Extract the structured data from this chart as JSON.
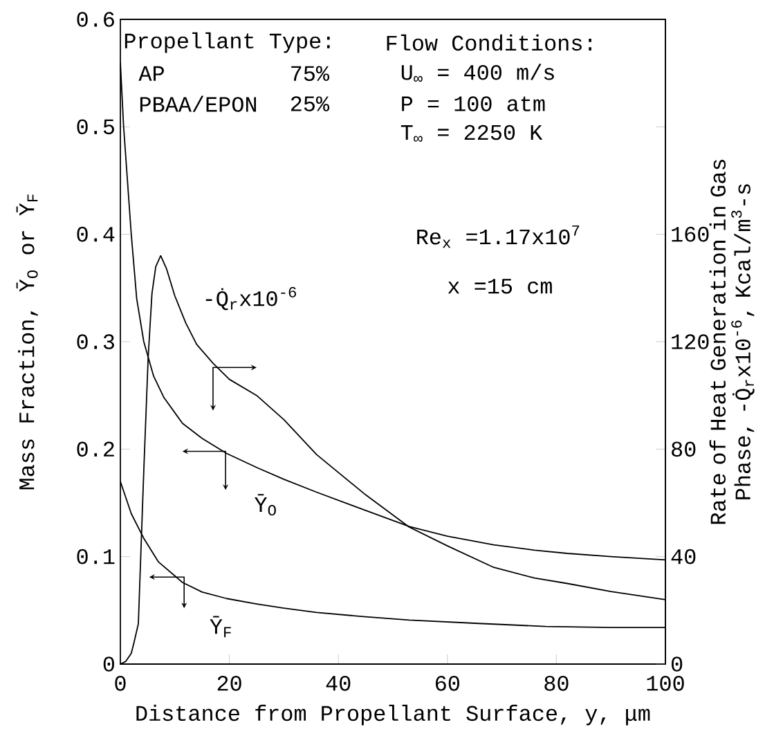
{
  "chart_data": {
    "type": "line",
    "xlabel": "Distance from Propellant Surface, y, μm",
    "ylabel": "Mass Fraction, Ȳ$_{O}$ or Ȳ$_{F}$",
    "y2label": "Rate of Heat Generation in Gas Phase, -Q̇$_{r}$x10$^{-6}$, Kcal/m$^{3}$-s",
    "xlim": [
      0,
      100
    ],
    "xticks": [
      0,
      20,
      40,
      60,
      80,
      100
    ],
    "ylim": [
      0,
      0.6
    ],
    "yticks": [
      0,
      0.1,
      0.2,
      0.3,
      0.4,
      0.5,
      0.6
    ],
    "y2lim": [
      0,
      240
    ],
    "y2ticks": [
      0,
      40,
      80,
      120,
      160,
      {
        "value": 200,
        "label": null
      }
    ],
    "series": [
      {
        "color": "#000000",
        "x": [
          0,
          0.6,
          2,
          3,
          4.3,
          6.1,
          8,
          11.4,
          15,
          19.5,
          25,
          30,
          36,
          45,
          53,
          60,
          68.5,
          76,
          82,
          90,
          100
        ],
        "values": [
          0.56,
          0.5,
          0.4,
          0.34,
          0.3,
          0.268,
          0.248,
          0.224,
          0.21,
          0.196,
          0.183,
          0.172,
          0.16,
          0.143,
          0.128,
          0.119,
          0.111,
          0.106,
          0.103,
          0.1,
          0.097
        ]
      },
      {
        "color": "#000000",
        "x": [
          0,
          2,
          4.3,
          7,
          11.4,
          15,
          19.5,
          25,
          30,
          36,
          45,
          53,
          65,
          78,
          90,
          100
        ],
        "values": [
          0.17,
          0.14,
          0.117,
          0.095,
          0.076,
          0.067,
          0.061,
          0.056,
          0.052,
          0.048,
          0.044,
          0.041,
          0.038,
          0.035,
          0.034,
          0.034
        ]
      },
      {
        "color": "#000000",
        "axis": "y2",
        "x": [
          0,
          1,
          2,
          2.5,
          3.3,
          4.3,
          5.1,
          5.8,
          6.5,
          7.4,
          8.5,
          10,
          12,
          14,
          17,
          20,
          25,
          30,
          36,
          45,
          53,
          60,
          68.5,
          76,
          82,
          90,
          100
        ],
        "values": [
          0,
          1,
          4,
          8,
          15,
          72,
          114,
          138,
          148,
          152,
          147,
          137,
          127,
          119,
          112,
          106,
          100,
          91,
          78,
          63,
          51,
          44,
          36,
          32,
          30,
          27,
          24
        ]
      }
    ],
    "annotations": [
      "Propellant Type:",
      "AP",
      "75%",
      "PBAA/EPON",
      "25%",
      "Flow Conditions:",
      "U$_{∞}$ = 400 m/s",
      "P = 100 atm",
      "T$_{∞}$ = 2250 K",
      "Re$_{x}$ =1.17x10$^{7}$",
      "x =15 cm",
      "-Q̇$_{r}$x10$^{-6}$",
      "Ȳ$_{O}$",
      "Ȳ$_{F}$"
    ]
  }
}
